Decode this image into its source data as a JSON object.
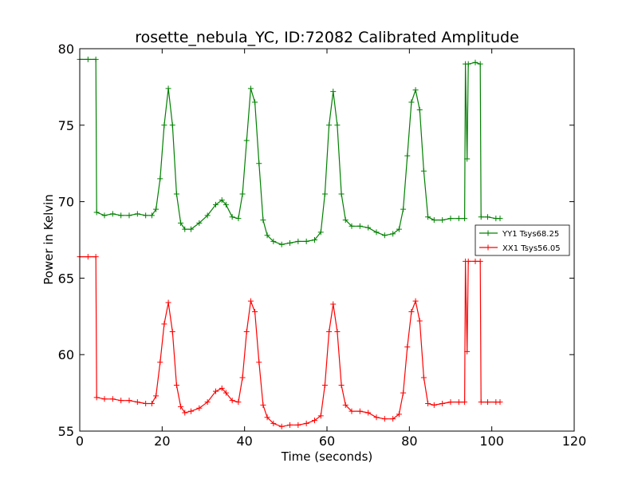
{
  "chart_data": {
    "type": "line",
    "title": "rosette_nebula_YC, ID:72082 Calibrated Amplitude",
    "xlabel": "Time (seconds)",
    "ylabel": "Power in Kelvin",
    "xlim": [
      0,
      120
    ],
    "ylim": [
      55,
      80
    ],
    "x_ticks": [
      "0",
      "20",
      "40",
      "60",
      "80",
      "100",
      "120"
    ],
    "y_ticks": [
      "55",
      "60",
      "65",
      "70",
      "75",
      "80"
    ],
    "grid": false,
    "legend_position": "right",
    "series": [
      {
        "name": "YY1 Tsys68.25",
        "color": "#008000",
        "marker": "plus",
        "points": [
          [
            0,
            79.3
          ],
          [
            2,
            79.3
          ],
          [
            3.9,
            79.3
          ],
          [
            4.1,
            69.3
          ],
          [
            6,
            69.1
          ],
          [
            8,
            69.2
          ],
          [
            10,
            69.1
          ],
          [
            12,
            69.1
          ],
          [
            14,
            69.2
          ],
          [
            16,
            69.1
          ],
          [
            17.5,
            69.1
          ],
          [
            18.5,
            69.5
          ],
          [
            19.5,
            71.5
          ],
          [
            20.5,
            75.0
          ],
          [
            21.5,
            77.4
          ],
          [
            22.5,
            75.0
          ],
          [
            23.5,
            70.5
          ],
          [
            24.5,
            68.6
          ],
          [
            25.5,
            68.2
          ],
          [
            27,
            68.2
          ],
          [
            29,
            68.6
          ],
          [
            31,
            69.1
          ],
          [
            33,
            69.8
          ],
          [
            34.5,
            70.1
          ],
          [
            35.5,
            69.8
          ],
          [
            37,
            69.0
          ],
          [
            38.5,
            68.9
          ],
          [
            39.5,
            70.5
          ],
          [
            40.5,
            74.0
          ],
          [
            41.5,
            77.4
          ],
          [
            42.5,
            76.5
          ],
          [
            43.5,
            72.5
          ],
          [
            44.5,
            68.8
          ],
          [
            45.5,
            67.8
          ],
          [
            47,
            67.4
          ],
          [
            49,
            67.2
          ],
          [
            51,
            67.3
          ],
          [
            53,
            67.4
          ],
          [
            55,
            67.4
          ],
          [
            57,
            67.5
          ],
          [
            58.5,
            68.0
          ],
          [
            59.5,
            70.5
          ],
          [
            60.5,
            75.0
          ],
          [
            61.5,
            77.2
          ],
          [
            62.5,
            75.0
          ],
          [
            63.5,
            70.5
          ],
          [
            64.5,
            68.8
          ],
          [
            66,
            68.4
          ],
          [
            68,
            68.4
          ],
          [
            70,
            68.3
          ],
          [
            72,
            68.0
          ],
          [
            74,
            67.8
          ],
          [
            76,
            67.9
          ],
          [
            77.5,
            68.2
          ],
          [
            78.5,
            69.5
          ],
          [
            79.5,
            73.0
          ],
          [
            80.5,
            76.5
          ],
          [
            81.5,
            77.3
          ],
          [
            82.5,
            76.0
          ],
          [
            83.5,
            72.0
          ],
          [
            84.5,
            69.0
          ],
          [
            86,
            68.8
          ],
          [
            88,
            68.8
          ],
          [
            90,
            68.9
          ],
          [
            92,
            68.9
          ],
          [
            93.4,
            68.9
          ],
          [
            93.6,
            79.0
          ],
          [
            94,
            72.8
          ],
          [
            94.3,
            79.0
          ],
          [
            96,
            79.1
          ],
          [
            97.2,
            79.0
          ],
          [
            97.4,
            69.0
          ],
          [
            99,
            69.0
          ],
          [
            101,
            68.9
          ],
          [
            102,
            68.9
          ]
        ]
      },
      {
        "name": "XX1 Tsys56.05",
        "color": "#ff0000",
        "marker": "plus",
        "points": [
          [
            0,
            66.4
          ],
          [
            2,
            66.4
          ],
          [
            3.9,
            66.4
          ],
          [
            4.1,
            57.2
          ],
          [
            6,
            57.1
          ],
          [
            8,
            57.1
          ],
          [
            10,
            57.0
          ],
          [
            12,
            57.0
          ],
          [
            14,
            56.9
          ],
          [
            16,
            56.8
          ],
          [
            17.5,
            56.8
          ],
          [
            18.5,
            57.3
          ],
          [
            19.5,
            59.5
          ],
          [
            20.5,
            62.0
          ],
          [
            21.5,
            63.4
          ],
          [
            22.5,
            61.5
          ],
          [
            23.5,
            58.0
          ],
          [
            24.5,
            56.6
          ],
          [
            25.5,
            56.2
          ],
          [
            27,
            56.3
          ],
          [
            29,
            56.5
          ],
          [
            31,
            56.9
          ],
          [
            33,
            57.6
          ],
          [
            34.5,
            57.8
          ],
          [
            35.5,
            57.5
          ],
          [
            37,
            57.0
          ],
          [
            38.5,
            56.9
          ],
          [
            39.5,
            58.5
          ],
          [
            40.5,
            61.5
          ],
          [
            41.5,
            63.5
          ],
          [
            42.5,
            62.8
          ],
          [
            43.5,
            59.5
          ],
          [
            44.5,
            56.7
          ],
          [
            45.5,
            55.9
          ],
          [
            47,
            55.5
          ],
          [
            49,
            55.3
          ],
          [
            51,
            55.4
          ],
          [
            53,
            55.4
          ],
          [
            55,
            55.5
          ],
          [
            57,
            55.7
          ],
          [
            58.5,
            56.0
          ],
          [
            59.5,
            58.0
          ],
          [
            60.5,
            61.5
          ],
          [
            61.5,
            63.3
          ],
          [
            62.5,
            61.5
          ],
          [
            63.5,
            58.0
          ],
          [
            64.5,
            56.7
          ],
          [
            66,
            56.3
          ],
          [
            68,
            56.3
          ],
          [
            70,
            56.2
          ],
          [
            72,
            55.9
          ],
          [
            74,
            55.8
          ],
          [
            76,
            55.8
          ],
          [
            77.5,
            56.1
          ],
          [
            78.5,
            57.5
          ],
          [
            79.5,
            60.5
          ],
          [
            80.5,
            62.8
          ],
          [
            81.5,
            63.5
          ],
          [
            82.5,
            62.2
          ],
          [
            83.5,
            58.5
          ],
          [
            84.5,
            56.8
          ],
          [
            86,
            56.7
          ],
          [
            88,
            56.8
          ],
          [
            90,
            56.9
          ],
          [
            92,
            56.9
          ],
          [
            93.4,
            56.9
          ],
          [
            93.6,
            66.1
          ],
          [
            94,
            60.2
          ],
          [
            94.3,
            66.1
          ],
          [
            96,
            66.1
          ],
          [
            97.2,
            66.1
          ],
          [
            97.4,
            56.9
          ],
          [
            99,
            56.9
          ],
          [
            101,
            56.9
          ],
          [
            102,
            56.9
          ]
        ]
      }
    ]
  }
}
